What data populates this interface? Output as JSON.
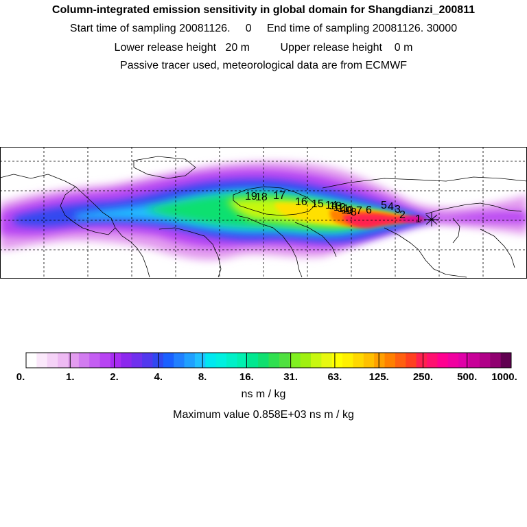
{
  "header": {
    "title": "Column-integrated emission sensitivity in global domain for Shangdianzi_200811",
    "line1": "Start time of sampling 20081126.     0     End time of sampling 20081126. 30000",
    "line2": "Lower release height   20 m          Upper release height    0 m",
    "line3": "Passive tracer used, meteorological data are from ECMWF"
  },
  "map": {
    "kind": "global emission sensitivity field",
    "station_marker": "star-marker",
    "trajectory_labels": [
      "1",
      "2",
      "3",
      "4",
      "5",
      "6",
      "7",
      "8",
      "9",
      "10",
      "11",
      "12",
      "13",
      "14",
      "15",
      "16",
      "17",
      "18",
      "19"
    ],
    "background": "#ffffff",
    "coastline_color": "#000000",
    "graticule": "dashed"
  },
  "chart_data": {
    "type": "heatmap",
    "title": "Column-integrated emission sensitivity in global domain for Shangdianzi_200811",
    "colorbar": {
      "tick_labels": [
        "0.",
        "1.",
        "2.",
        "4.",
        "8.",
        "16.",
        "31.",
        "63.",
        "125.",
        "250.",
        "500.",
        "1000."
      ],
      "unit": "ns m / kg",
      "colors": [
        "#ffffff",
        "#fbe8fb",
        "#f5d2f7",
        "#eebaf3",
        "#e39cef",
        "#d27cf0",
        "#c45ef2",
        "#b844f3",
        "#a82cf2",
        "#8c28ee",
        "#7030ee",
        "#5238ee",
        "#3048f0",
        "#1a60ff",
        "#2080ff",
        "#20a0ff",
        "#20c0ff",
        "#00e8f0",
        "#00f0e0",
        "#00f0c8",
        "#00f0b0",
        "#00e890",
        "#10e070",
        "#30e050",
        "#50e040",
        "#80f020",
        "#a0f010",
        "#c8f810",
        "#e8f810",
        "#ffff00",
        "#fff000",
        "#ffd800",
        "#ffc000",
        "#ffa000",
        "#ff8000",
        "#ff6010",
        "#ff4020",
        "#ff2050",
        "#ff1070",
        "#ff0090",
        "#f000a0",
        "#e000a8",
        "#c80098",
        "#b00088",
        "#900070",
        "#600050"
      ]
    },
    "maximum_value_text": "Maximum value  0.858E+03 ns m / kg"
  }
}
